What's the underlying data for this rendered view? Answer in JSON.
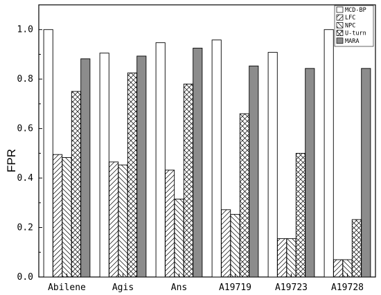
{
  "chart_data": {
    "type": "bar",
    "title": "",
    "xlabel": "",
    "ylabel": "FPR",
    "ylim": [
      0,
      1.1
    ],
    "yticks": [
      "0.0",
      "0.2",
      "0.4",
      "0.6",
      "0.8",
      "1.0"
    ],
    "ytick_values": [
      0,
      0.2,
      0.4,
      0.6,
      0.8,
      1.0
    ],
    "grid": false,
    "legend_position": "top-right",
    "categories": [
      "Abilene",
      "Agis",
      "Ans",
      "A19719",
      "A19723",
      "A19728"
    ],
    "series": [
      {
        "name": "MCD-BP",
        "pattern": "empty",
        "values": [
          1.0,
          0.905,
          0.947,
          0.958,
          0.908,
          1.0
        ]
      },
      {
        "name": "LFC",
        "pattern": "diag-forward",
        "values": [
          0.495,
          0.465,
          0.432,
          0.272,
          0.155,
          0.07
        ]
      },
      {
        "name": "NPC",
        "pattern": "diag-back",
        "values": [
          0.483,
          0.453,
          0.315,
          0.253,
          0.155,
          0.07
        ]
      },
      {
        "name": "U-turn",
        "pattern": "crosshatch",
        "values": [
          0.75,
          0.825,
          0.78,
          0.66,
          0.5,
          0.232
        ]
      },
      {
        "name": "MARA",
        "pattern": "solid",
        "values": [
          0.882,
          0.893,
          0.925,
          0.853,
          0.843,
          0.843
        ]
      }
    ],
    "colors": {
      "axis": "#000000",
      "solid_fill": "#8c8c8c",
      "bar_stroke": "#000000"
    }
  }
}
